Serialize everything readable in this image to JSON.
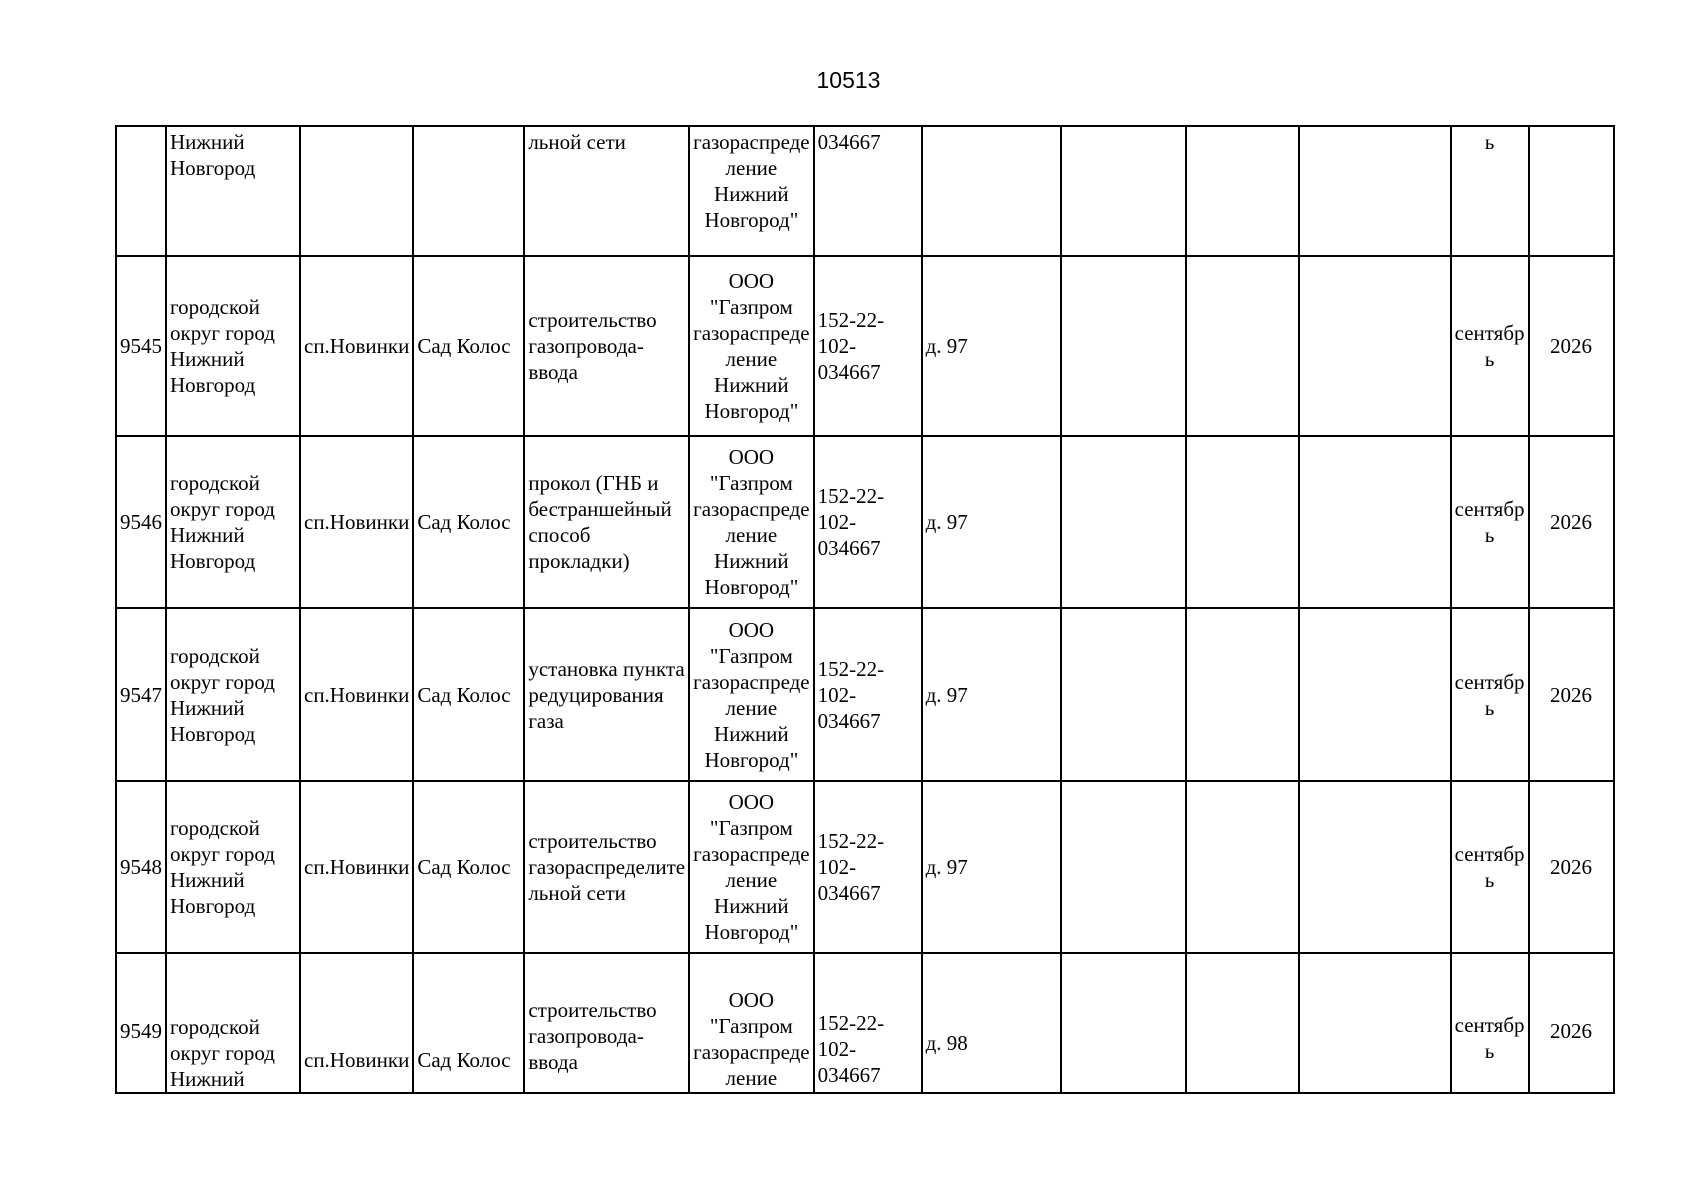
{
  "page": {
    "number": "10513"
  },
  "table": {
    "rows": [
      {
        "num": "",
        "district": "Нижний\nНовгород",
        "settlement": "",
        "territory": "",
        "work": "льной сети",
        "org": "газораспреде\nление\nНижний\nНовгород\"",
        "req": "034667",
        "house": "",
        "e1": "",
        "e2": "",
        "e3": "",
        "month": "ь",
        "year": ""
      },
      {
        "num": "9545",
        "district": "городской\nокруг город\nНижний\nНовгород",
        "settlement": "сп.Новинки",
        "territory": "Сад Колос",
        "work": "строительство\nгазопровода-\nввода",
        "org": "ООО\n\"Газпром\nгазораспреде\nление\nНижний\nНовгород\"",
        "req": "152-22-102-\n034667",
        "house": "д. 97",
        "e1": "",
        "e2": "",
        "e3": "",
        "month": "сентябр\nь",
        "year": "2026"
      },
      {
        "num": "9546",
        "district": "городской\nокруг город\nНижний\nНовгород",
        "settlement": "сп.Новинки",
        "territory": "Сад Колос",
        "work": "прокол (ГНБ и\nбестраншейный\nспособ\nпрокладки)",
        "org": "ООО\n\"Газпром\nгазораспреде\nление\nНижний\nНовгород\"",
        "req": "152-22-102-\n034667",
        "house": "д. 97",
        "e1": "",
        "e2": "",
        "e3": "",
        "month": "сентябр\nь",
        "year": "2026"
      },
      {
        "num": "9547",
        "district": "городской\nокруг город\nНижний\nНовгород",
        "settlement": "сп.Новинки",
        "territory": "Сад Колос",
        "work": "установка пункта\nредуцирования\nгаза",
        "org": "ООО\n\"Газпром\nгазораспреде\nление\nНижний\nНовгород\"",
        "req": "152-22-102-\n034667",
        "house": "д. 97",
        "e1": "",
        "e2": "",
        "e3": "",
        "month": "сентябр\nь",
        "year": "2026"
      },
      {
        "num": "9548",
        "district": "городской\nокруг город\nНижний\nНовгород",
        "settlement": "сп.Новинки",
        "territory": "Сад Колос",
        "work": "строительство\nгазораспределите\nльной сети",
        "org": "ООО\n\"Газпром\nгазораспреде\nление\nНижний\nНовгород\"",
        "req": "152-22-102-\n034667",
        "house": "д. 97",
        "e1": "",
        "e2": "",
        "e3": "",
        "month": "сентябр\nь",
        "year": "2026"
      },
      {
        "num": "9549",
        "district": "городской\nокруг город\nНижний",
        "settlement": "сп.Новинки",
        "territory": "Сад Колос",
        "work": "строительство\nгазопровода-\nввода",
        "org": "ООО\n\"Газпром\nгазораспреде\nление",
        "req": "152-22-102-\n034667",
        "house": "д. 98",
        "e1": "",
        "e2": "",
        "e3": "",
        "month": "сентябр\nь",
        "year": "2026"
      }
    ]
  }
}
